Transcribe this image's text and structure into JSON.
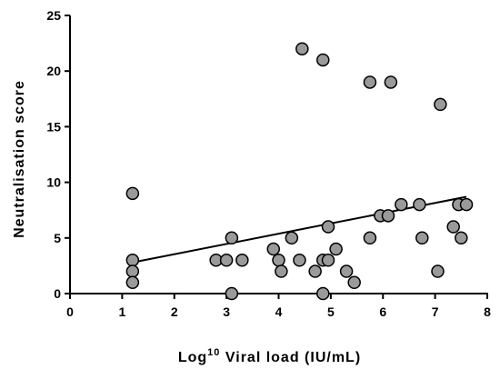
{
  "chart_data": {
    "type": "scatter",
    "title": "",
    "xlabel_parts": [
      "Log",
      "10",
      " Viral load (IU/mL)"
    ],
    "ylabel": "Neutralisation score",
    "xlim": [
      0,
      8
    ],
    "ylim": [
      0,
      25
    ],
    "x_ticks": [
      "0",
      "1",
      "2",
      "3",
      "4",
      "5",
      "6",
      "7",
      "8"
    ],
    "y_ticks": [
      "0",
      "5",
      "10",
      "15",
      "20",
      "25"
    ],
    "grid": false,
    "marker_color": "#9a9a9a",
    "series": [
      {
        "points": [
          [
            1.2,
            9
          ],
          [
            1.2,
            3
          ],
          [
            1.2,
            2
          ],
          [
            1.2,
            1
          ],
          [
            2.8,
            3
          ],
          [
            3.0,
            3
          ],
          [
            3.1,
            5
          ],
          [
            3.1,
            0
          ],
          [
            3.3,
            3
          ],
          [
            3.9,
            4
          ],
          [
            4.0,
            3
          ],
          [
            4.05,
            2
          ],
          [
            4.25,
            5
          ],
          [
            4.4,
            3
          ],
          [
            4.45,
            22
          ],
          [
            4.7,
            2
          ],
          [
            4.85,
            21
          ],
          [
            4.85,
            0
          ],
          [
            4.85,
            3
          ],
          [
            4.95,
            3
          ],
          [
            4.95,
            6
          ],
          [
            5.1,
            4
          ],
          [
            5.3,
            2
          ],
          [
            5.45,
            1
          ],
          [
            5.75,
            19
          ],
          [
            5.75,
            5
          ],
          [
            5.95,
            7
          ],
          [
            6.1,
            7
          ],
          [
            6.15,
            19
          ],
          [
            6.35,
            8
          ],
          [
            6.7,
            8
          ],
          [
            6.75,
            5
          ],
          [
            7.05,
            2
          ],
          [
            7.1,
            17
          ],
          [
            7.35,
            6
          ],
          [
            7.45,
            8
          ],
          [
            7.5,
            5
          ],
          [
            7.6,
            8
          ]
        ]
      }
    ],
    "trendline": [
      [
        1.2,
        2.8
      ],
      [
        7.6,
        8.7
      ]
    ]
  }
}
